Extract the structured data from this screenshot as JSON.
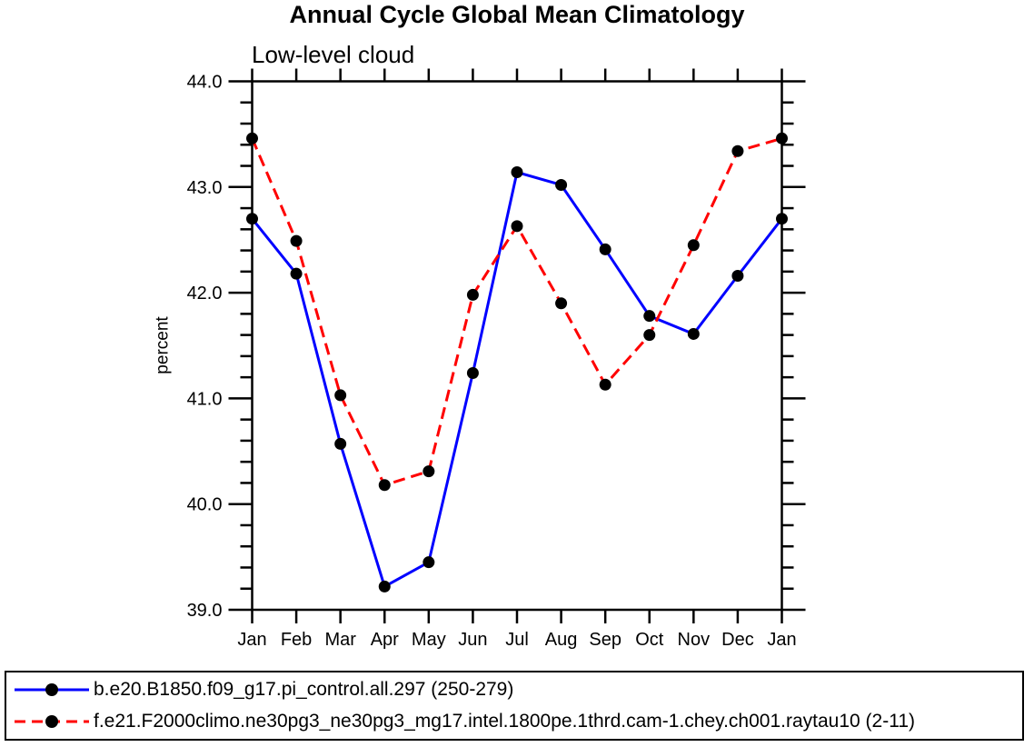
{
  "page": {
    "background": "#ffffff",
    "axis_color": "#000000"
  },
  "chart_data": {
    "type": "line",
    "title": "Annual Cycle Global Mean Climatology",
    "subtitle": "Low-level cloud",
    "ylabel": "percent",
    "xlabel": "",
    "categories": [
      "Jan",
      "Feb",
      "Mar",
      "Apr",
      "May",
      "Jun",
      "Jul",
      "Aug",
      "Sep",
      "Oct",
      "Nov",
      "Dec",
      "Jan"
    ],
    "series": [
      {
        "name": "b.e20.B1850.f09_g17.pi_control.all.297 (250-279)",
        "color": "#0000ff",
        "line_style": "solid",
        "marker": "filled-circle",
        "marker_color": "#000000",
        "values": [
          42.7,
          42.18,
          40.57,
          39.22,
          39.45,
          41.24,
          43.14,
          43.02,
          42.41,
          41.78,
          41.61,
          42.16,
          42.7
        ]
      },
      {
        "name": "f.e21.F2000climo.ne30pg3_ne30pg3_mg17.intel.1800pe.1thrd.cam-1.chey.ch001.raytau10 (2-11)",
        "color": "#ff0000",
        "line_style": "dashed",
        "marker": "filled-circle",
        "marker_color": "#000000",
        "values": [
          43.46,
          42.49,
          41.03,
          40.18,
          40.31,
          41.98,
          42.63,
          41.9,
          41.13,
          41.6,
          42.45,
          43.34,
          43.46
        ]
      }
    ],
    "ylim": [
      39.0,
      44.0
    ],
    "ytick_major": 1.0,
    "ytick_minor": 0.2,
    "ytick_labels": [
      "39.0",
      "40.0",
      "41.0",
      "42.0",
      "43.0",
      "44.0"
    ],
    "grid": false,
    "legend_position": "bottom-box"
  }
}
